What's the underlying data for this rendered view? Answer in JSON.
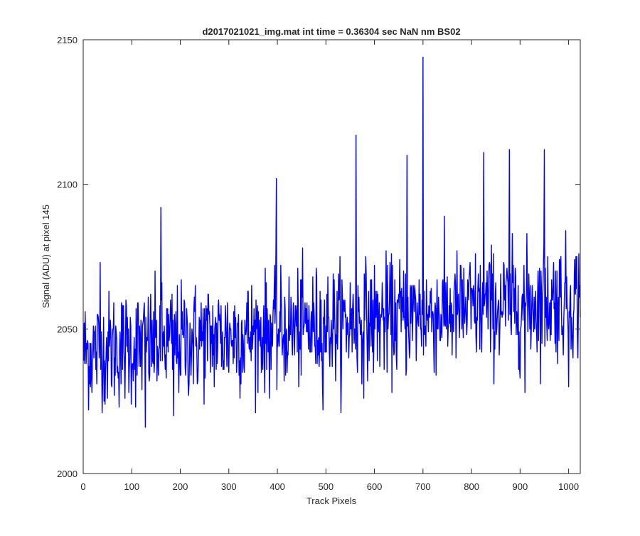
{
  "chart_data": {
    "type": "line",
    "title": "d2017021021_img.mat int time = 0.36304 sec  NaN nm BS02",
    "xlabel": "Track Pixels",
    "ylabel": "Signal (ADU) at pixel 145",
    "xlim": [
      0,
      1024
    ],
    "ylim": [
      2000,
      2150
    ],
    "xticks": [
      0,
      100,
      200,
      300,
      400,
      500,
      600,
      700,
      800,
      900,
      1000
    ],
    "yticks": [
      2000,
      2050,
      2100,
      2150
    ],
    "grid": false,
    "line_color": "#0000ff",
    "series": [
      {
        "x_start": 1,
        "x_step": 1,
        "n_points": 1024,
        "mean_start": 2042,
        "mean_end": 2061,
        "noise_std": 10,
        "min": 2016,
        "max": 2144,
        "peaks": [
          {
            "x": 35,
            "y": 2073
          },
          {
            "x": 128,
            "y": 2016
          },
          {
            "x": 160,
            "y": 2092
          },
          {
            "x": 186,
            "y": 2020
          },
          {
            "x": 398,
            "y": 2102
          },
          {
            "x": 562,
            "y": 2117
          },
          {
            "x": 667,
            "y": 2110
          },
          {
            "x": 700,
            "y": 2144
          },
          {
            "x": 825,
            "y": 2111
          },
          {
            "x": 878,
            "y": 2112
          },
          {
            "x": 910,
            "y": 2028
          },
          {
            "x": 950,
            "y": 2112
          },
          {
            "x": 1000,
            "y": 2030
          }
        ]
      }
    ]
  }
}
